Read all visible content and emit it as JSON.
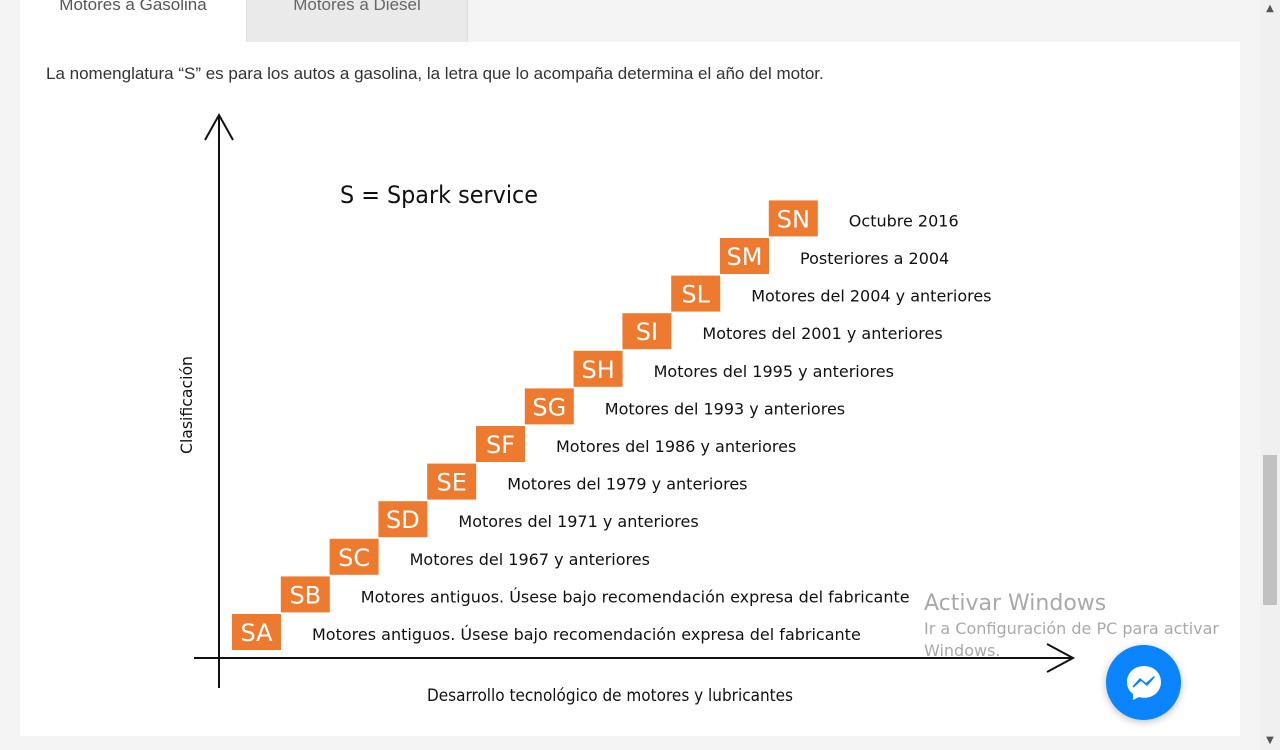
{
  "tabs": [
    {
      "label": "Motores a Gasolina"
    },
    {
      "label": "Motores a Diesel"
    }
  ],
  "intro": "La nomenglatura “S” es para los autos a gasolina, la letra que lo acompaña determina el año del motor.",
  "infographic": {
    "title": "S = Spark service",
    "y_axis_label": "Clasificación",
    "x_axis_label": "Desarrollo tecnológico de motores y lubricantes",
    "badge_color": "#ee7a2f",
    "steps": [
      {
        "code": "SA",
        "desc": "Motores antiguos.  Úsese bajo recomendación expresa del fabricante"
      },
      {
        "code": "SB",
        "desc": "Motores antiguos.  Úsese bajo recomendación expresa del fabricante"
      },
      {
        "code": "SC",
        "desc": "Motores del 1967 y anteriores"
      },
      {
        "code": "SD",
        "desc": "Motores del 1971 y anteriores"
      },
      {
        "code": "SE",
        "desc": "Motores del 1979 y anteriores"
      },
      {
        "code": "SF",
        "desc": "Motores del 1986 y anteriores"
      },
      {
        "code": "SG",
        "desc": "Motores del 1993 y anteriores"
      },
      {
        "code": "SH",
        "desc": "Motores del 1995 y anteriores"
      },
      {
        "code": "SI",
        "desc": "Motores del 2001 y anteriores"
      },
      {
        "code": "SL",
        "desc": "Motores del 2004 y anteriores"
      },
      {
        "code": "SM",
        "desc": "Posteriores a 2004"
      },
      {
        "code": "SN",
        "desc": "Octubre 2016"
      }
    ]
  },
  "watermark": {
    "title": "Activar Windows",
    "subtitle": "Ir a Configuración de PC para activar Windows."
  },
  "messenger": {
    "icon": "messenger-icon",
    "color": "#0a84ff"
  }
}
